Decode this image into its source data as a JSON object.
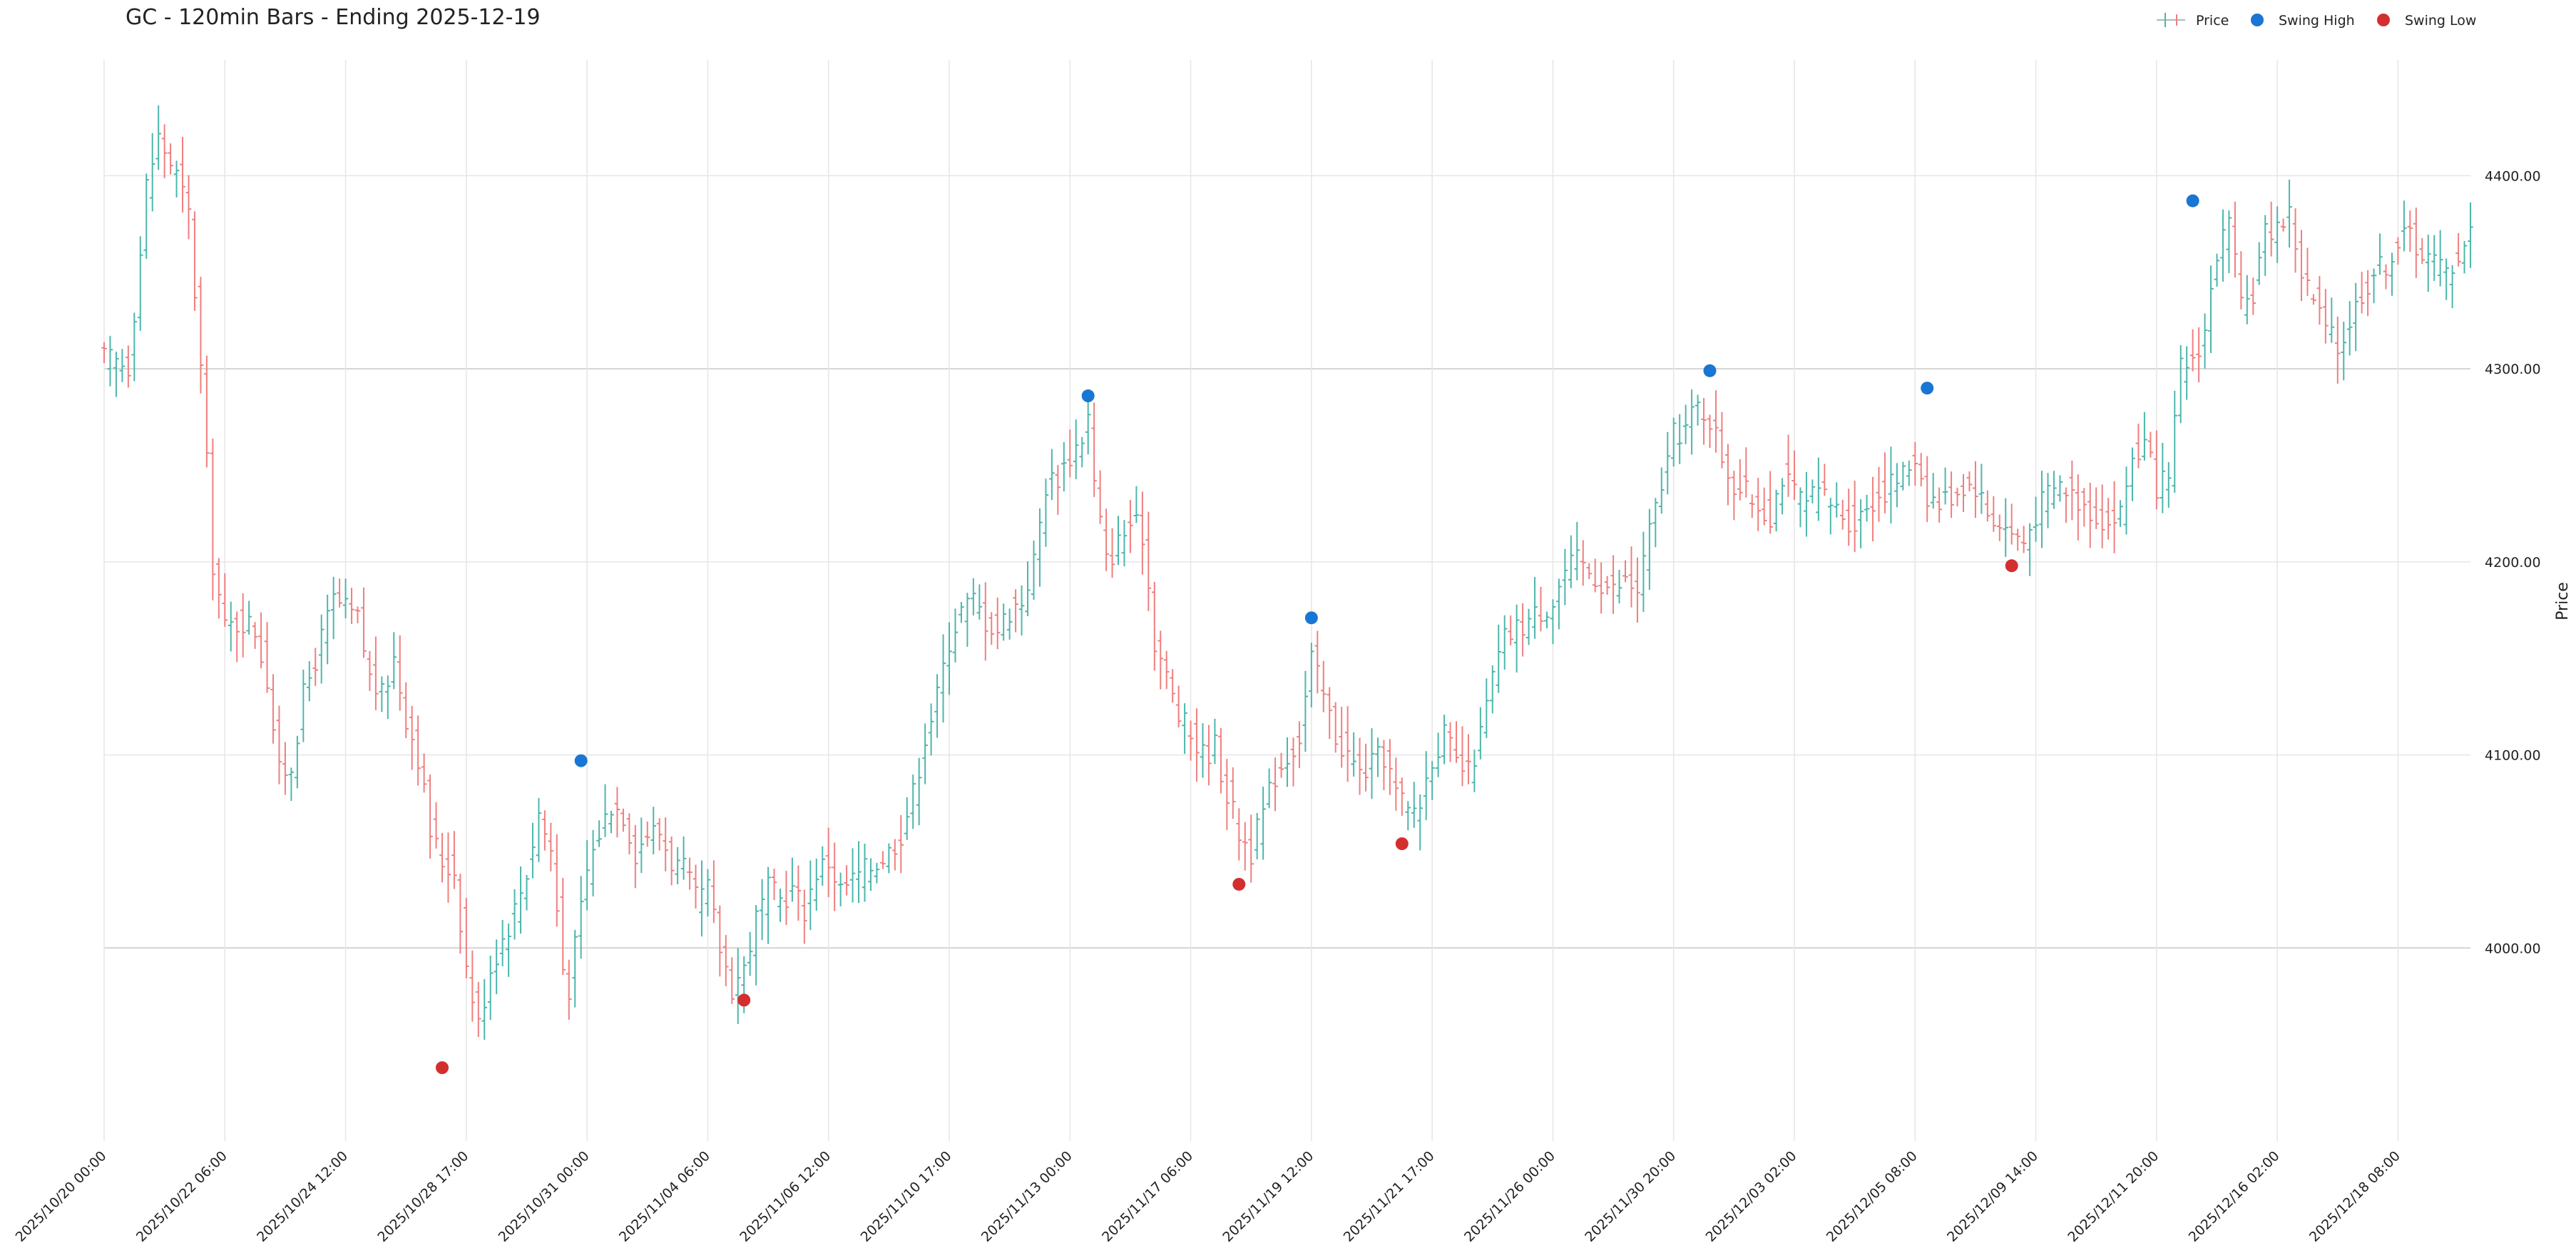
{
  "chart_data": {
    "type": "ohlc",
    "title": "GC - 120min Bars - Ending 2025-12-19",
    "xlabel": "",
    "ylabel": "Price",
    "ylim": [
      3900,
      4460
    ],
    "grid": true,
    "legend_position": "top-right",
    "colors": {
      "up": "#4db6ac",
      "down": "#ef7f7f",
      "swing_high": "#1976d2",
      "swing_low": "#d32f2f"
    },
    "legend": [
      {
        "label": "Price",
        "icon": "ohlc-bar-icon"
      },
      {
        "label": "Swing High",
        "icon": "blue-dot-icon"
      },
      {
        "label": "Swing Low",
        "icon": "red-dot-icon"
      }
    ],
    "y_ticks": [
      {
        "value": 4000,
        "label": "4000.00"
      },
      {
        "value": 4100,
        "label": "4100.00"
      },
      {
        "value": 4200,
        "label": "4200.00"
      },
      {
        "value": 4300,
        "label": "4300.00"
      },
      {
        "value": 4400,
        "label": "4400.00"
      }
    ],
    "x_ticks": [
      {
        "bar": 0,
        "label": "2025/10/20 00:00"
      },
      {
        "bar": 20,
        "label": "2025/10/22 06:00"
      },
      {
        "bar": 40,
        "label": "2025/10/24 12:00"
      },
      {
        "bar": 60,
        "label": "2025/10/28 17:00"
      },
      {
        "bar": 80,
        "label": "2025/10/31 00:00"
      },
      {
        "bar": 100,
        "label": "2025/11/04 06:00"
      },
      {
        "bar": 120,
        "label": "2025/11/06 12:00"
      },
      {
        "bar": 140,
        "label": "2025/11/10 17:00"
      },
      {
        "bar": 160,
        "label": "2025/11/13 00:00"
      },
      {
        "bar": 180,
        "label": "2025/11/17 06:00"
      },
      {
        "bar": 200,
        "label": "2025/11/19 12:00"
      },
      {
        "bar": 220,
        "label": "2025/11/21 17:00"
      },
      {
        "bar": 240,
        "label": "2025/11/26 00:00"
      },
      {
        "bar": 260,
        "label": "2025/11/30 20:00"
      },
      {
        "bar": 280,
        "label": "2025/12/03 02:00"
      },
      {
        "bar": 300,
        "label": "2025/12/05 08:00"
      },
      {
        "bar": 320,
        "label": "2025/12/09 14:00"
      },
      {
        "bar": 340,
        "label": "2025/12/11 20:00"
      },
      {
        "bar": 360,
        "label": "2025/12/16 02:00"
      },
      {
        "bar": 380,
        "label": "2025/12/18 08:00"
      }
    ],
    "bar_count": 393,
    "close_path": [
      [
        0,
        4305
      ],
      [
        4,
        4302
      ],
      [
        6,
        4360
      ],
      [
        7,
        4395
      ],
      [
        9,
        4420
      ],
      [
        12,
        4400
      ],
      [
        14,
        4380
      ],
      [
        16,
        4300
      ],
      [
        18,
        4200
      ],
      [
        20,
        4165
      ],
      [
        23,
        4170
      ],
      [
        25,
        4165
      ],
      [
        27,
        4140
      ],
      [
        29,
        4090
      ],
      [
        31,
        4095
      ],
      [
        33,
        4130
      ],
      [
        35,
        4150
      ],
      [
        38,
        4180
      ],
      [
        40,
        4175
      ],
      [
        42,
        4170
      ],
      [
        44,
        4140
      ],
      [
        46,
        4130
      ],
      [
        48,
        4150
      ],
      [
        50,
        4120
      ],
      [
        52,
        4100
      ],
      [
        54,
        4060
      ],
      [
        56,
        4045
      ],
      [
        58,
        4040
      ],
      [
        60,
        3990
      ],
      [
        62,
        3960
      ],
      [
        64,
        3990
      ],
      [
        66,
        4005
      ],
      [
        68,
        4020
      ],
      [
        70,
        4040
      ],
      [
        72,
        4070
      ],
      [
        74,
        4050
      ],
      [
        76,
        3990
      ],
      [
        77,
        3980
      ],
      [
        78,
        4000
      ],
      [
        80,
        4040
      ],
      [
        82,
        4060
      ],
      [
        84,
        4075
      ],
      [
        86,
        4070
      ],
      [
        88,
        4050
      ],
      [
        90,
        4060
      ],
      [
        92,
        4060
      ],
      [
        94,
        4045
      ],
      [
        96,
        4040
      ],
      [
        98,
        4025
      ],
      [
        100,
        4030
      ],
      [
        102,
        4000
      ],
      [
        104,
        3980
      ],
      [
        106,
        3990
      ],
      [
        108,
        4015
      ],
      [
        110,
        4030
      ],
      [
        112,
        4025
      ],
      [
        114,
        4030
      ],
      [
        116,
        4020
      ],
      [
        118,
        4040
      ],
      [
        120,
        4045
      ],
      [
        122,
        4030
      ],
      [
        124,
        4035
      ],
      [
        126,
        4040
      ],
      [
        128,
        4045
      ],
      [
        130,
        4050
      ],
      [
        132,
        4060
      ],
      [
        134,
        4080
      ],
      [
        136,
        4110
      ],
      [
        138,
        4130
      ],
      [
        140,
        4160
      ],
      [
        142,
        4175
      ],
      [
        144,
        4180
      ],
      [
        146,
        4170
      ],
      [
        148,
        4165
      ],
      [
        150,
        4175
      ],
      [
        152,
        4180
      ],
      [
        154,
        4200
      ],
      [
        156,
        4240
      ],
      [
        158,
        4245
      ],
      [
        160,
        4255
      ],
      [
        162,
        4265
      ],
      [
        163,
        4275
      ],
      [
        164,
        4240
      ],
      [
        166,
        4200
      ],
      [
        168,
        4210
      ],
      [
        170,
        4220
      ],
      [
        172,
        4215
      ],
      [
        174,
        4160
      ],
      [
        176,
        4140
      ],
      [
        178,
        4120
      ],
      [
        180,
        4110
      ],
      [
        182,
        4100
      ],
      [
        184,
        4105
      ],
      [
        186,
        4080
      ],
      [
        188,
        4060
      ],
      [
        190,
        4050
      ],
      [
        192,
        4070
      ],
      [
        194,
        4090
      ],
      [
        196,
        4100
      ],
      [
        198,
        4110
      ],
      [
        200,
        4150
      ],
      [
        202,
        4130
      ],
      [
        204,
        4110
      ],
      [
        206,
        4100
      ],
      [
        208,
        4090
      ],
      [
        210,
        4095
      ],
      [
        212,
        4100
      ],
      [
        214,
        4080
      ],
      [
        216,
        4070
      ],
      [
        218,
        4075
      ],
      [
        220,
        4100
      ],
      [
        222,
        4110
      ],
      [
        224,
        4095
      ],
      [
        226,
        4090
      ],
      [
        228,
        4110
      ],
      [
        230,
        4140
      ],
      [
        232,
        4160
      ],
      [
        234,
        4165
      ],
      [
        236,
        4170
      ],
      [
        238,
        4175
      ],
      [
        240,
        4180
      ],
      [
        242,
        4195
      ],
      [
        244,
        4200
      ],
      [
        246,
        4195
      ],
      [
        248,
        4190
      ],
      [
        250,
        4185
      ],
      [
        252,
        4190
      ],
      [
        254,
        4185
      ],
      [
        256,
        4215
      ],
      [
        258,
        4240
      ],
      [
        260,
        4265
      ],
      [
        262,
        4270
      ],
      [
        264,
        4280
      ],
      [
        266,
        4275
      ],
      [
        268,
        4255
      ],
      [
        270,
        4240
      ],
      [
        272,
        4235
      ],
      [
        274,
        4230
      ],
      [
        276,
        4225
      ],
      [
        278,
        4245
      ],
      [
        280,
        4235
      ],
      [
        282,
        4230
      ],
      [
        284,
        4235
      ],
      [
        286,
        4230
      ],
      [
        288,
        4225
      ],
      [
        290,
        4220
      ],
      [
        292,
        4230
      ],
      [
        294,
        4235
      ],
      [
        296,
        4240
      ],
      [
        298,
        4245
      ],
      [
        300,
        4255
      ],
      [
        302,
        4235
      ],
      [
        304,
        4230
      ],
      [
        306,
        4235
      ],
      [
        308,
        4240
      ],
      [
        310,
        4240
      ],
      [
        312,
        4225
      ],
      [
        314,
        4220
      ],
      [
        316,
        4215
      ],
      [
        318,
        4210
      ],
      [
        320,
        4225
      ],
      [
        322,
        4235
      ],
      [
        324,
        4240
      ],
      [
        326,
        4235
      ],
      [
        328,
        4230
      ],
      [
        330,
        4225
      ],
      [
        332,
        4220
      ],
      [
        334,
        4225
      ],
      [
        336,
        4255
      ],
      [
        338,
        4260
      ],
      [
        340,
        4240
      ],
      [
        342,
        4240
      ],
      [
        344,
        4300
      ],
      [
        346,
        4305
      ],
      [
        348,
        4320
      ],
      [
        350,
        4360
      ],
      [
        352,
        4375
      ],
      [
        354,
        4330
      ],
      [
        356,
        4340
      ],
      [
        358,
        4370
      ],
      [
        360,
        4375
      ],
      [
        362,
        4380
      ],
      [
        364,
        4350
      ],
      [
        366,
        4335
      ],
      [
        368,
        4320
      ],
      [
        370,
        4310
      ],
      [
        372,
        4325
      ],
      [
        374,
        4340
      ],
      [
        376,
        4350
      ],
      [
        378,
        4355
      ],
      [
        380,
        4365
      ],
      [
        382,
        4370
      ],
      [
        384,
        4360
      ],
      [
        386,
        4355
      ],
      [
        388,
        4350
      ],
      [
        390,
        4360
      ],
      [
        392,
        4370
      ]
    ],
    "swing_highs": [
      {
        "bar": 79,
        "price": 4097
      },
      {
        "bar": 163,
        "price": 4286
      },
      {
        "bar": 200,
        "price": 4171
      },
      {
        "bar": 266,
        "price": 4299
      },
      {
        "bar": 302,
        "price": 4290
      },
      {
        "bar": 346,
        "price": 4387
      }
    ],
    "swing_lows": [
      {
        "bar": 56,
        "price": 3938
      },
      {
        "bar": 106,
        "price": 3973
      },
      {
        "bar": 188,
        "price": 4033
      },
      {
        "bar": 215,
        "price": 4054
      },
      {
        "bar": 316,
        "price": 4198
      }
    ]
  }
}
